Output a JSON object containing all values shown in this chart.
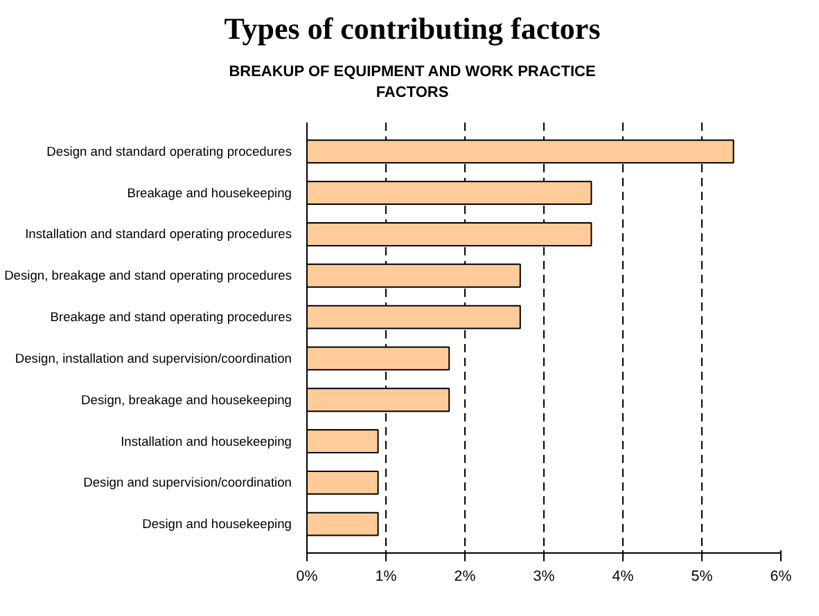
{
  "chart_data": {
    "type": "bar",
    "orientation": "horizontal",
    "title": "Types of contributing factors",
    "subtitle": "BREAKUP OF EQUIPMENT AND WORK PRACTICE\nFACTORS",
    "categories": [
      "Design and standard operating procedures",
      "Breakage and housekeeping",
      "Installation and standard operating procedures",
      "Design, breakage and stand operating procedures",
      "Breakage and stand operating procedures",
      "Design, installation and supervision/coordination",
      "Design, breakage and housekeeping",
      "Installation and housekeeping",
      "Design and supervision/coordination",
      "Design and housekeeping"
    ],
    "values": [
      5.4,
      3.6,
      3.6,
      2.7,
      2.7,
      1.8,
      1.8,
      0.9,
      0.9,
      0.9
    ],
    "color": "#ffcc99",
    "xlim": [
      0,
      6
    ],
    "xticks": [
      {
        "value": 0,
        "label": "0%"
      },
      {
        "value": 1,
        "label": "1%"
      },
      {
        "value": 2,
        "label": "2%"
      },
      {
        "value": 3,
        "label": "3%"
      },
      {
        "value": 4,
        "label": "4%"
      },
      {
        "value": 5,
        "label": "5%"
      },
      {
        "value": 6,
        "label": "6%"
      }
    ],
    "grid": "x"
  }
}
